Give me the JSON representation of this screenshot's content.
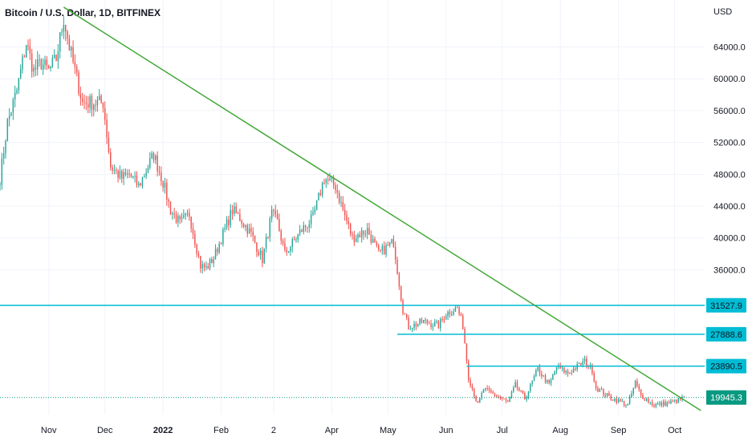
{
  "header": {
    "title": "Bitcoin / U.S. Dollar, 1D, BITFINEX"
  },
  "currency_label": "USD",
  "colors": {
    "up": "#26a69a",
    "down": "#ef5350",
    "trendline": "#43a838",
    "level_line": "#00bcd4",
    "level_badge": "#00bcd4",
    "last_badge": "#089981",
    "grid": "#f0f3fa",
    "axis_text": "#131722"
  },
  "chart_data": {
    "type": "candlestick",
    "title": "Bitcoin / U.S. Dollar, 1D, BITFINEX",
    "ylabel": "USD",
    "ylim": [
      17800,
      69900
    ],
    "xlim": [
      "2021-10-06",
      "2022-10-17"
    ],
    "y_ticks": [
      36000,
      40000,
      44000,
      48000,
      52000,
      56000,
      60000,
      64000
    ],
    "x_ticks": [
      {
        "label": "Nov",
        "date": "2021-11-01"
      },
      {
        "label": "Dec",
        "date": "2021-12-01"
      },
      {
        "label": "2022",
        "date": "2022-01-01"
      },
      {
        "label": "Feb",
        "date": "2022-02-01"
      },
      {
        "label": "2",
        "date": "2022-03-01"
      },
      {
        "label": "Apr",
        "date": "2022-04-01"
      },
      {
        "label": "May",
        "date": "2022-05-01"
      },
      {
        "label": "Jun",
        "date": "2022-06-01"
      },
      {
        "label": "Jul",
        "date": "2022-07-01"
      },
      {
        "label": "Aug",
        "date": "2022-08-01"
      },
      {
        "label": "Sep",
        "date": "2022-09-01"
      },
      {
        "label": "Oct",
        "date": "2022-10-01"
      }
    ],
    "close_anchors": [
      [
        "2021-10-06",
        47500
      ],
      [
        "2021-10-10",
        54500
      ],
      [
        "2021-10-15",
        58500
      ],
      [
        "2021-10-20",
        64500
      ],
      [
        "2021-10-24",
        61000
      ],
      [
        "2021-10-28",
        62000
      ],
      [
        "2021-11-01",
        61000
      ],
      [
        "2021-11-05",
        62500
      ],
      [
        "2021-11-09",
        67600
      ],
      [
        "2021-11-12",
        64000
      ],
      [
        "2021-11-16",
        60000
      ],
      [
        "2021-11-19",
        57000
      ],
      [
        "2021-11-24",
        57000
      ],
      [
        "2021-11-30",
        57000
      ],
      [
        "2021-12-04",
        49000
      ],
      [
        "2021-12-10",
        47500
      ],
      [
        "2021-12-14",
        48000
      ],
      [
        "2021-12-19",
        46500
      ],
      [
        "2021-12-27",
        50500
      ],
      [
        "2022-01-01",
        47000
      ],
      [
        "2022-01-05",
        43500
      ],
      [
        "2022-01-10",
        41800
      ],
      [
        "2022-01-15",
        43000
      ],
      [
        "2022-01-21",
        36500
      ],
      [
        "2022-01-24",
        36200
      ],
      [
        "2022-01-28",
        37500
      ],
      [
        "2022-02-07",
        43500
      ],
      [
        "2022-02-11",
        42500
      ],
      [
        "2022-02-17",
        40500
      ],
      [
        "2022-02-23",
        37300
      ],
      [
        "2022-02-28",
        43000
      ],
      [
        "2022-03-03",
        42000
      ],
      [
        "2022-03-07",
        38000
      ],
      [
        "2022-03-16",
        41000
      ],
      [
        "2022-03-22",
        42500
      ],
      [
        "2022-03-28",
        47500
      ],
      [
        "2022-04-03",
        46500
      ],
      [
        "2022-04-07",
        43500
      ],
      [
        "2022-04-12",
        40000
      ],
      [
        "2022-04-20",
        41000
      ],
      [
        "2022-04-26",
        38000
      ],
      [
        "2022-05-04",
        39500
      ],
      [
        "2022-05-06",
        36000
      ],
      [
        "2022-05-09",
        31000
      ],
      [
        "2022-05-12",
        28800
      ],
      [
        "2022-05-20",
        29500
      ],
      [
        "2022-05-28",
        29000
      ],
      [
        "2022-06-01",
        30500
      ],
      [
        "2022-06-07",
        31200
      ],
      [
        "2022-06-10",
        29000
      ],
      [
        "2022-06-13",
        22500
      ],
      [
        "2022-06-18",
        19000
      ],
      [
        "2022-06-21",
        21000
      ],
      [
        "2022-06-30",
        19900
      ],
      [
        "2022-07-04",
        19300
      ],
      [
        "2022-07-08",
        21500
      ],
      [
        "2022-07-13",
        19800
      ],
      [
        "2022-07-20",
        23500
      ],
      [
        "2022-07-26",
        21500
      ],
      [
        "2022-07-30",
        23800
      ],
      [
        "2022-08-05",
        23000
      ],
      [
        "2022-08-14",
        24500
      ],
      [
        "2022-08-18",
        23400
      ],
      [
        "2022-08-20",
        21200
      ],
      [
        "2022-08-27",
        20000
      ],
      [
        "2022-09-06",
        19000
      ],
      [
        "2022-09-10",
        21800
      ],
      [
        "2022-09-13",
        20200
      ],
      [
        "2022-09-20",
        19000
      ],
      [
        "2022-09-27",
        19200
      ],
      [
        "2022-10-03",
        19600
      ],
      [
        "2022-10-06",
        19945.3
      ]
    ],
    "trendline": {
      "from": [
        "2021-11-09",
        69000
      ],
      "to": [
        "2022-10-15",
        18300
      ]
    },
    "horizontal_levels": [
      {
        "value": 31527.9,
        "label": "31527.9",
        "from": "2021-10-06"
      },
      {
        "value": 27888.6,
        "label": "27888.6",
        "from": "2022-05-06"
      },
      {
        "value": 23890.5,
        "label": "23890.5",
        "from": "2022-06-12"
      }
    ],
    "last_price": {
      "value": 19945.3,
      "label": "19945.3"
    }
  }
}
